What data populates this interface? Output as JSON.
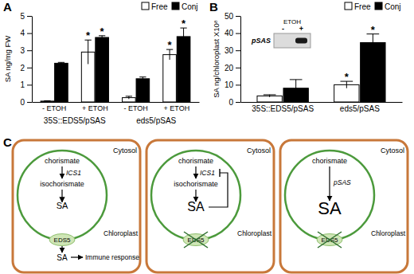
{
  "chart_data": [
    {
      "type": "bar",
      "panel": "A",
      "y_label": "SA ng/mg FW",
      "categories": [
        "- ETOH",
        "+ ETOH",
        "- ETOH",
        "+ ETOH"
      ],
      "group_labels": [
        "35S::EDS5/pSAS",
        "eds5/pSAS"
      ],
      "series": [
        {
          "name": "Free",
          "color": "#ffffff",
          "values": [
            0.05,
            2.9,
            0.25,
            2.75
          ],
          "errors": [
            0.02,
            0.7,
            0.08,
            0.3
          ],
          "significance": [
            null,
            "*",
            null,
            "*"
          ]
        },
        {
          "name": "Conj",
          "color": "#000000",
          "values": [
            2.25,
            3.75,
            1.35,
            3.8
          ],
          "errors": [
            0.05,
            0.1,
            0.1,
            0.5
          ],
          "significance": [
            null,
            "*",
            null,
            "*"
          ]
        }
      ],
      "ylim": [
        0,
        5
      ],
      "yticks": [
        0,
        1,
        2,
        3,
        4,
        5
      ],
      "legend": "top-right"
    },
    {
      "type": "bar",
      "panel": "B",
      "y_label": "SA ng/chloroplast X10⁸",
      "categories": [
        "35S::EDS5/pSAS",
        "eds5/pSAS"
      ],
      "series": [
        {
          "name": "Free",
          "color": "#ffffff",
          "values": [
            3.5,
            10
          ],
          "errors": [
            0.7,
            2
          ],
          "significance": [
            null,
            "*"
          ]
        },
        {
          "name": "Conj",
          "color": "#000000",
          "values": [
            8,
            34.5
          ],
          "errors": [
            5,
            5
          ],
          "significance": [
            null,
            "*"
          ]
        }
      ],
      "inset": {
        "title": "ETOH",
        "lanes": [
          "-",
          "+"
        ],
        "label": "pSAS"
      },
      "ylim": [
        0,
        50
      ],
      "yticks": [
        0,
        10,
        20,
        30,
        40,
        50
      ],
      "legend": "top-right"
    }
  ],
  "diagram": {
    "panel": "C",
    "cells": [
      {
        "cytosol": "Cytosol",
        "chloroplast": "Chloroplast",
        "substrate": "chorismate",
        "enzyme": "ICS1",
        "intermediate": "isochorismate",
        "product": "SA",
        "transporter": "EDS5",
        "exported": "SA",
        "response": "Immune response"
      },
      {
        "cytosol": "Cytosol",
        "chloroplast": "Chloroplast",
        "substrate": "chorismate",
        "enzyme": "ICS1",
        "intermediate": "isochorismate",
        "product": "SA",
        "transporter": "EDS5",
        "feedback": true
      },
      {
        "cytosol": "Cytosol",
        "chloroplast": "Chloroplast",
        "substrate": "chorismate",
        "enzyme": "pSAS",
        "product": "SA",
        "transporter": "EDS5"
      }
    ]
  }
}
